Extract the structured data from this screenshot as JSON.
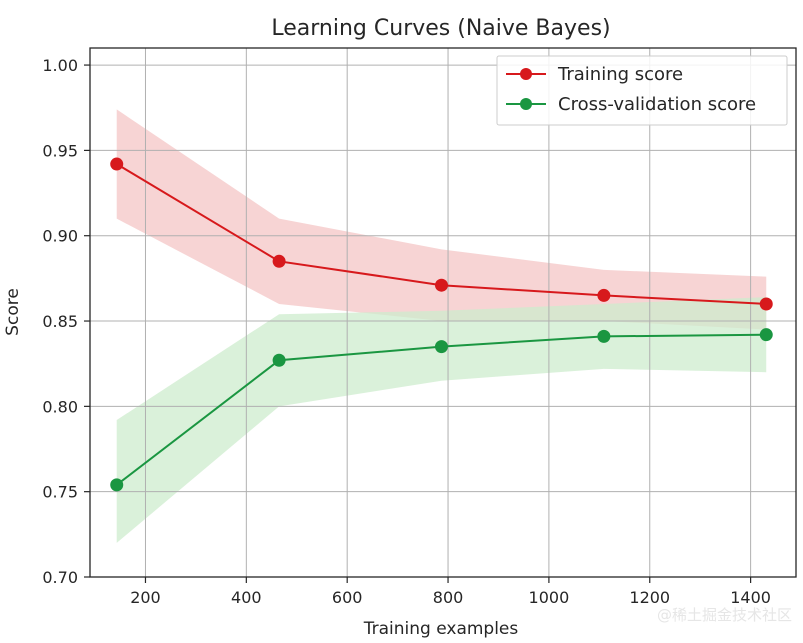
{
  "chart_data": {
    "type": "line",
    "title": "Learning Curves (Naive Bayes)",
    "xlabel": "Training examples",
    "ylabel": "Score",
    "xlim": [
      90,
      1490
    ],
    "ylim": [
      0.7,
      1.01
    ],
    "xticks": [
      200,
      400,
      600,
      800,
      1000,
      1200,
      1400
    ],
    "xtick_labels": [
      "200",
      "400",
      "600",
      "800",
      "1000",
      "1200",
      "1400"
    ],
    "yticks": [
      0.7,
      0.75,
      0.8,
      0.85,
      0.9,
      0.95,
      1.0
    ],
    "ytick_labels": [
      "0.70",
      "0.75",
      "0.80",
      "0.85",
      "0.90",
      "0.95",
      "1.00"
    ],
    "grid": true,
    "legend_position": "top-right",
    "x": [
      143,
      465,
      787,
      1109,
      1431
    ],
    "series": [
      {
        "name": "Training score",
        "color": "#d7191c",
        "values": [
          0.942,
          0.885,
          0.871,
          0.865,
          0.86
        ],
        "band_lower": [
          0.91,
          0.86,
          0.85,
          0.85,
          0.845
        ],
        "band_upper": [
          0.974,
          0.91,
          0.892,
          0.88,
          0.876
        ],
        "band_color": "#f4c6c6"
      },
      {
        "name": "Cross-validation score",
        "color": "#1a9641",
        "values": [
          0.754,
          0.827,
          0.835,
          0.841,
          0.842
        ],
        "band_lower": [
          0.72,
          0.8,
          0.815,
          0.822,
          0.82
        ],
        "band_upper": [
          0.792,
          0.854,
          0.856,
          0.86,
          0.864
        ],
        "band_color": "#cdeccd"
      }
    ]
  },
  "watermark": "@稀土掘金技术社区"
}
